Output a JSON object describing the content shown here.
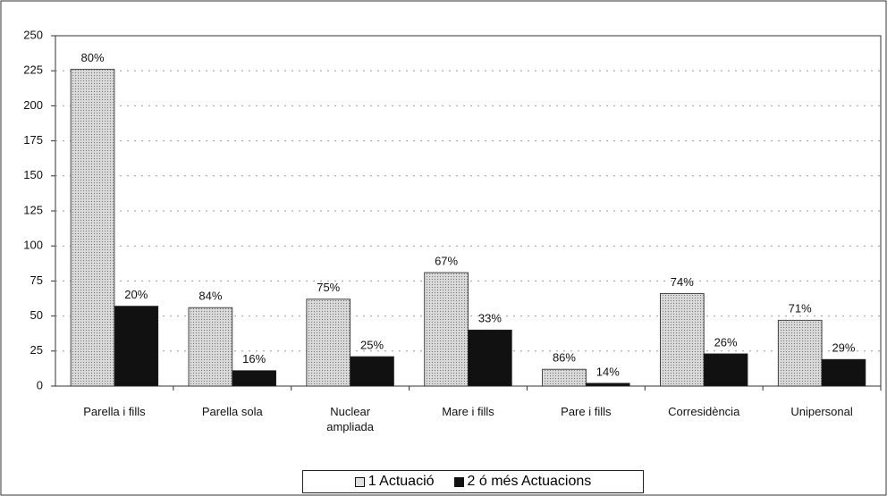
{
  "chart_data": {
    "type": "bar",
    "categories": [
      "Parella i fills",
      "Parella sola",
      "Nuclear ampliada",
      "Mare i fills",
      "Pare i fills",
      "Corresidència",
      "Unipersonal"
    ],
    "series": [
      {
        "name": "1 Actuació",
        "color": "#c4c4c4",
        "values": [
          226,
          56,
          62,
          81,
          12,
          66,
          47
        ],
        "share_labels": [
          "80%",
          "84%",
          "75%",
          "67%",
          "86%",
          "74%",
          "71%"
        ]
      },
      {
        "name": "2 ó més Actuacions",
        "color": "#111111",
        "values": [
          57,
          11,
          21,
          40,
          2,
          23,
          19
        ],
        "share_labels": [
          "20%",
          "16%",
          "25%",
          "33%",
          "14%",
          "26%",
          "29%"
        ]
      }
    ],
    "ylim": [
      0,
      250
    ],
    "yticks": [
      0,
      25,
      50,
      75,
      100,
      125,
      150,
      175,
      200,
      225,
      250
    ],
    "grid": true,
    "legend": "bottom"
  }
}
